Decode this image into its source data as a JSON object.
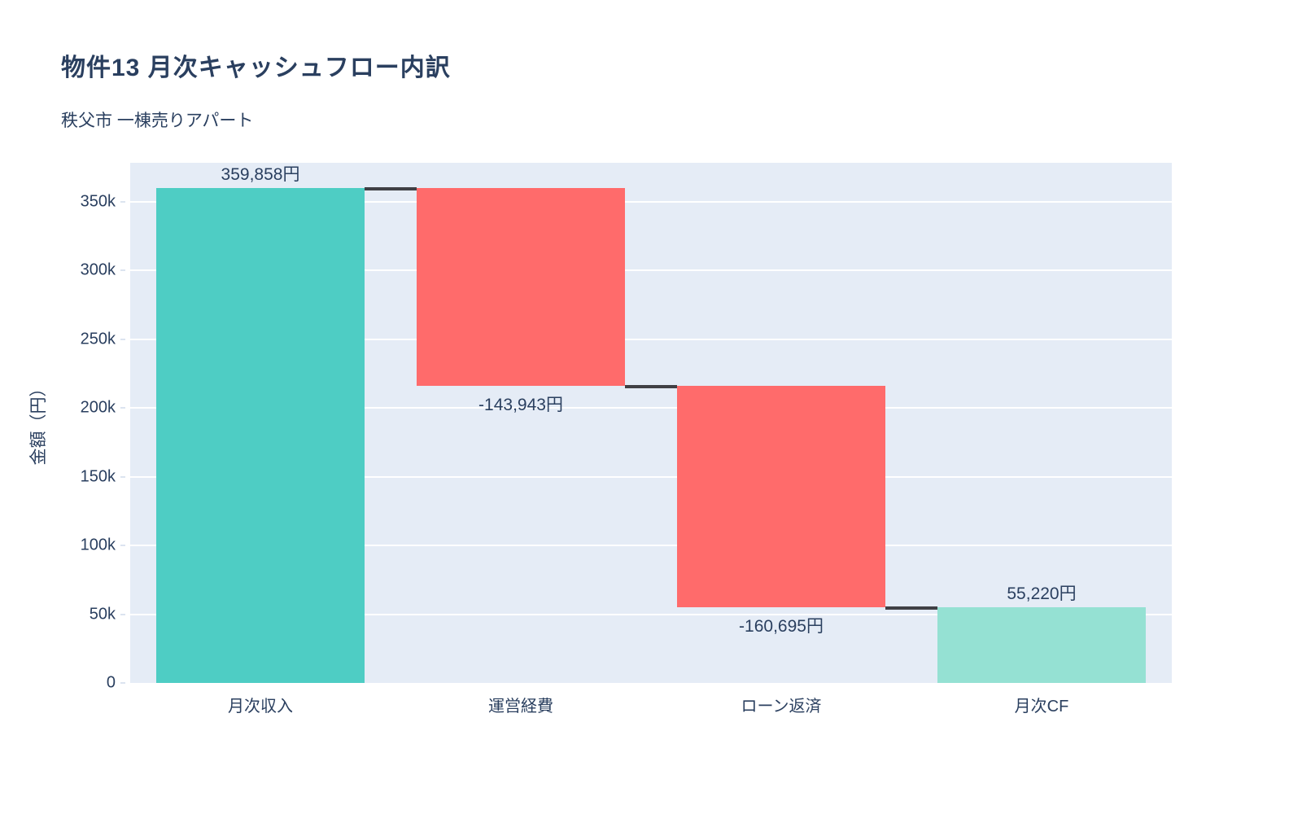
{
  "chart_data": {
    "type": "waterfall",
    "title": "物件13 月次キャッシュフロー内訳",
    "subtitle": "秩父市 一棟売りアパート",
    "categories": [
      "月次収入",
      "運営経費",
      "ローン返済",
      "月次CF"
    ],
    "ids": [
      "monthly-income",
      "operating-expenses",
      "loan-repayment",
      "monthly-cf"
    ],
    "measures": [
      "relative",
      "relative",
      "relative",
      "total"
    ],
    "values": [
      359858,
      -143943,
      -160695,
      55220
    ],
    "value_labels": [
      "359,858円",
      "-143,943円",
      "-160,695円",
      "55,220円"
    ],
    "cumulative_levels": [
      359858,
      215915,
      55220,
      55220
    ],
    "xlabel": "",
    "ylabel": "金額（円）",
    "ylim": [
      0,
      378420
    ],
    "yticks": [
      {
        "value": 0,
        "label": "0"
      },
      {
        "value": 50000,
        "label": "50k"
      },
      {
        "value": 100000,
        "label": "100k"
      },
      {
        "value": 150000,
        "label": "150k"
      },
      {
        "value": 200000,
        "label": "200k"
      },
      {
        "value": 250000,
        "label": "250k"
      },
      {
        "value": 300000,
        "label": "300k"
      },
      {
        "value": 350000,
        "label": "350k"
      }
    ],
    "grid": true,
    "legend_position": "none",
    "colors": {
      "increasing": "#4ECDC4",
      "decreasing": "#FF6B6B",
      "total": "#95E1D3",
      "connector": "#404045",
      "plot_background": "#E5ECF6",
      "gridline": "#FFFFFF",
      "text": "#2A3F5F"
    }
  }
}
